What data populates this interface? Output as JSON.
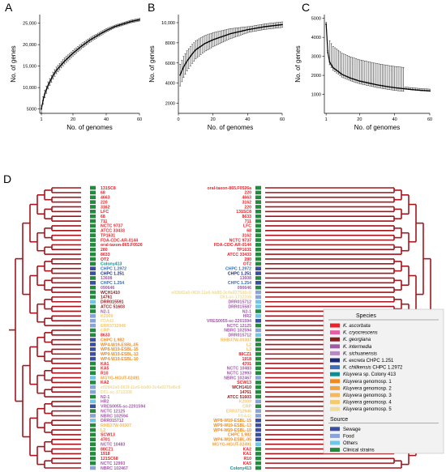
{
  "panels": {
    "a": "A",
    "b": "B",
    "c": "C",
    "d": "D"
  },
  "colors": {
    "tree": "#a5151b",
    "species": {
      "asc": "#e8232a",
      "cry": "#e45fa2",
      "geo": "#8f1d1e",
      "int": "#a05aa7",
      "sic": "#b88ac1",
      "exc": "#1d2a7a",
      "chi": "#3b6fb6",
      "col": "#0e8c8f",
      "g1": "#f08a1f",
      "g2": "#f4a23a",
      "g3": "#f6b85c",
      "g4": "#f6c96f",
      "g5": "#efdc98"
    },
    "source": {
      "sewage": "#3a4ea3",
      "food": "#8aa3d8",
      "others": "#6cc7ea",
      "clinical": "#1f8d3c"
    }
  },
  "chart_data": [
    {
      "id": "A",
      "type": "scatter",
      "xlabel": "No. of genomes",
      "ylabel": "No. of genes",
      "xlim": [
        0,
        60
      ],
      "ylim": [
        4000,
        27000
      ],
      "xticks": [
        "1",
        "20",
        "40",
        "60"
      ],
      "xtick_values": [
        1,
        20,
        40,
        60
      ],
      "yticks": [
        "5000",
        "10,000",
        "15,000",
        "20,000",
        "25,000"
      ],
      "ytick_values": [
        5000,
        10000,
        15000,
        20000,
        25000
      ],
      "curve": [
        [
          1,
          5000
        ],
        [
          2,
          7000
        ],
        [
          3,
          8500
        ],
        [
          5,
          10500
        ],
        [
          8,
          12800
        ],
        [
          10,
          14000
        ],
        [
          15,
          16200
        ],
        [
          20,
          18000
        ],
        [
          25,
          19600
        ],
        [
          30,
          21000
        ],
        [
          35,
          22200
        ],
        [
          40,
          23300
        ],
        [
          45,
          24200
        ],
        [
          50,
          24800
        ],
        [
          55,
          25400
        ],
        [
          60,
          25800
        ]
      ]
    },
    {
      "id": "B",
      "type": "scatter",
      "xlabel": "No. of genomes",
      "ylabel": "No. of genes",
      "xlim": [
        0,
        60
      ],
      "ylim": [
        1000,
        10800
      ],
      "xticks": [
        "0",
        "20",
        "40",
        "60"
      ],
      "xtick_values": [
        0,
        20,
        40,
        60
      ],
      "yticks": [
        "2000",
        "4000",
        "6000",
        "8000",
        "10,000"
      ],
      "ytick_values": [
        2000,
        4000,
        6000,
        8000,
        10000
      ],
      "curve": [
        [
          1,
          4800
        ],
        [
          3,
          5600
        ],
        [
          5,
          6200
        ],
        [
          8,
          6900
        ],
        [
          10,
          7300
        ],
        [
          15,
          7900
        ],
        [
          20,
          8300
        ],
        [
          25,
          8600
        ],
        [
          30,
          8900
        ],
        [
          35,
          9100
        ],
        [
          40,
          9300
        ],
        [
          45,
          9450
        ],
        [
          50,
          9600
        ],
        [
          55,
          9700
        ],
        [
          60,
          9800
        ]
      ]
    },
    {
      "id": "C",
      "type": "scatter",
      "xlabel": "No. of genomes",
      "ylabel": "No. of genes",
      "xlim": [
        0,
        60
      ],
      "ylim": [
        0,
        5200
      ],
      "xticks": [
        "1",
        "20",
        "40",
        "60"
      ],
      "xtick_values": [
        1,
        20,
        40,
        60
      ],
      "yticks": [
        "1000",
        "2000",
        "3000",
        "4000",
        "5000"
      ],
      "ytick_values": [
        1000,
        2000,
        3000,
        4000,
        5000
      ],
      "curve": [
        [
          1,
          4700
        ],
        [
          2,
          3200
        ],
        [
          3,
          2700
        ],
        [
          5,
          2400
        ],
        [
          8,
          2200
        ],
        [
          10,
          2050
        ],
        [
          15,
          1850
        ],
        [
          20,
          1700
        ],
        [
          25,
          1600
        ],
        [
          30,
          1500
        ],
        [
          35,
          1420
        ],
        [
          40,
          1350
        ],
        [
          45,
          1300
        ],
        [
          50,
          1250
        ],
        [
          55,
          1210
        ],
        [
          60,
          1180
        ]
      ]
    }
  ],
  "tree_left_leaves": [
    {
      "label": "131SC8",
      "sp": "asc",
      "src": "clinical"
    },
    {
      "label": "68",
      "sp": "asc",
      "src": "clinical"
    },
    {
      "label": "4663",
      "sp": "asc",
      "src": "clinical"
    },
    {
      "label": "220",
      "sp": "asc",
      "src": "clinical"
    },
    {
      "label": "3162",
      "sp": "asc",
      "src": "clinical"
    },
    {
      "label": "LFC",
      "sp": "asc",
      "src": "clinical"
    },
    {
      "label": "68",
      "sp": "asc",
      "src": "clinical"
    },
    {
      "label": "711",
      "sp": "asc",
      "src": "clinical"
    },
    {
      "label": "NCTC 9737",
      "sp": "asc",
      "src": "clinical"
    },
    {
      "label": "ATCC 33433",
      "sp": "asc",
      "src": "clinical"
    },
    {
      "label": "TP1631",
      "sp": "asc",
      "src": "clinical"
    },
    {
      "label": "FDA-CDC-AR-0144",
      "sp": "asc",
      "src": "clinical"
    },
    {
      "label": "oral-taxon-865.F0526",
      "sp": "asc",
      "src": "clinical"
    },
    {
      "label": "280",
      "sp": "asc",
      "src": "clinical"
    },
    {
      "label": "8633",
      "sp": "asc",
      "src": "clinical"
    },
    {
      "label": "OT2",
      "sp": "asc",
      "src": "clinical"
    },
    {
      "label": "Colony413",
      "sp": "col",
      "src": "clinical"
    },
    {
      "label": "CHPC 1.2972",
      "sp": "chi",
      "src": "sewage"
    },
    {
      "label": "CHPC 1.251",
      "sp": "exc",
      "src": "sewage"
    },
    {
      "label": "13608",
      "sp": "int",
      "src": "clinical"
    },
    {
      "label": "CHPC 1.254",
      "sp": "chi",
      "src": "sewage"
    },
    {
      "label": "090646",
      "sp": "int",
      "src": "clinical"
    },
    {
      "label": "WCH1410",
      "sp": "geo",
      "src": "clinical"
    },
    {
      "label": "14761",
      "sp": "geo",
      "src": "clinical"
    },
    {
      "label": "DRR015591",
      "sp": "geo",
      "src": "others"
    },
    {
      "label": "ATCC 51603",
      "sp": "geo",
      "src": "clinical"
    },
    {
      "label": "N2-1",
      "sp": "int",
      "src": "clinical"
    },
    {
      "label": "K2009",
      "sp": "g4",
      "src": "food"
    },
    {
      "label": "FDA42",
      "sp": "g5",
      "src": "food"
    },
    {
      "label": "ERR3712946",
      "sp": "g4",
      "src": "food"
    },
    {
      "label": "CRP",
      "sp": "g4",
      "src": "clinical"
    },
    {
      "label": "8633",
      "sp": "asc",
      "src": "clinical"
    },
    {
      "label": "CHPC 1.982",
      "sp": "g1",
      "src": "sewage"
    },
    {
      "label": "WP4-W19-ESBL-05",
      "sp": "g1",
      "src": "sewage"
    },
    {
      "label": "WP8-W19-ESBL-15",
      "sp": "g1",
      "src": "sewage"
    },
    {
      "label": "WP9-W19-ESBL-13",
      "sp": "g1",
      "src": "sewage"
    },
    {
      "label": "WP4-W19-ESBL-10",
      "sp": "g1",
      "src": "sewage"
    },
    {
      "label": "KA1",
      "sp": "asc",
      "src": "clinical"
    },
    {
      "label": "KA5",
      "sp": "asc",
      "src": "clinical"
    },
    {
      "label": "R10",
      "sp": "asc",
      "src": "clinical"
    },
    {
      "label": "MGYG-HGUT-02491",
      "sp": "g2",
      "src": "others"
    },
    {
      "label": "KA2",
      "sp": "asc",
      "src": "clinical"
    },
    {
      "label": "e02842a0-063f-11e6-bb80-3c4a9275d6c8",
      "sp": "g5",
      "src": "food"
    },
    {
      "label": "D51-sc-1712208",
      "sp": "g5",
      "src": "food"
    },
    {
      "label": "N2-1",
      "sp": "int",
      "src": "clinical"
    },
    {
      "label": "HR2",
      "sp": "int",
      "src": "others"
    },
    {
      "label": "VRES0055-sc-2201594",
      "sp": "int",
      "src": "sewage"
    },
    {
      "label": "NCTC 12125",
      "sp": "int",
      "src": "clinical"
    },
    {
      "label": "NBRC 102594",
      "sp": "int",
      "src": "food"
    },
    {
      "label": "DRR015712",
      "sp": "int",
      "src": "others"
    },
    {
      "label": "RHB37W-00307",
      "sp": "g3",
      "src": "clinical"
    },
    {
      "label": "L2",
      "sp": "g3",
      "src": "clinical"
    },
    {
      "label": "SCW13",
      "sp": "asc",
      "src": "clinical"
    },
    {
      "label": "4701",
      "sp": "asc",
      "src": "clinical"
    },
    {
      "label": "NCTC 10483",
      "sp": "int",
      "src": "clinical"
    },
    {
      "label": "88CZ1",
      "sp": "asc",
      "src": "clinical"
    },
    {
      "label": "1918",
      "sp": "asc",
      "src": "clinical"
    },
    {
      "label": "121SC68",
      "sp": "asc",
      "src": "clinical"
    },
    {
      "label": "NCTC 12993",
      "sp": "int",
      "src": "clinical"
    },
    {
      "label": "NBRC 102467",
      "sp": "int",
      "src": "food"
    }
  ],
  "tree_right_leaves": [
    {
      "label": "oral-taxon-865.F0526a",
      "sp": "asc",
      "src": "clinical"
    },
    {
      "label": "220",
      "sp": "asc",
      "src": "clinical"
    },
    {
      "label": "4663",
      "sp": "asc",
      "src": "clinical"
    },
    {
      "label": "3162",
      "sp": "asc",
      "src": "clinical"
    },
    {
      "label": "220",
      "sp": "asc",
      "src": "clinical"
    },
    {
      "label": "131SC8",
      "sp": "asc",
      "src": "clinical"
    },
    {
      "label": "8633",
      "sp": "asc",
      "src": "clinical"
    },
    {
      "label": "711",
      "sp": "asc",
      "src": "clinical"
    },
    {
      "label": "LFC",
      "sp": "asc",
      "src": "clinical"
    },
    {
      "label": "68",
      "sp": "asc",
      "src": "clinical"
    },
    {
      "label": "3162",
      "sp": "asc",
      "src": "clinical"
    },
    {
      "label": "NCTC 9737",
      "sp": "asc",
      "src": "clinical"
    },
    {
      "label": "FDA-CDC-AR-0144",
      "sp": "asc",
      "src": "clinical"
    },
    {
      "label": "TP1631",
      "sp": "asc",
      "src": "clinical"
    },
    {
      "label": "ATCC 33433",
      "sp": "asc",
      "src": "clinical"
    },
    {
      "label": "280",
      "sp": "asc",
      "src": "clinical"
    },
    {
      "label": "OT2",
      "sp": "asc",
      "src": "clinical"
    },
    {
      "label": "CHPC 1.2972",
      "sp": "chi",
      "src": "sewage"
    },
    {
      "label": "CHPC 1.251",
      "sp": "exc",
      "src": "sewage"
    },
    {
      "label": "13608",
      "sp": "int",
      "src": "clinical"
    },
    {
      "label": "CHPC 1.254",
      "sp": "chi",
      "src": "sewage"
    },
    {
      "label": "090646",
      "sp": "int",
      "src": "clinical"
    },
    {
      "label": "e02842a0-063f-11e6-bb80-3c4a9275d6c8",
      "sp": "g5",
      "src": "food"
    },
    {
      "label": "D51-sc-1712208",
      "sp": "g5",
      "src": "food"
    },
    {
      "label": "DRR015712",
      "sp": "int",
      "src": "others"
    },
    {
      "label": "DRR015587",
      "sp": "int",
      "src": "others"
    },
    {
      "label": "N2-1",
      "sp": "int",
      "src": "clinical"
    },
    {
      "label": "HR2",
      "sp": "int",
      "src": "others"
    },
    {
      "label": "VRES0055-sc-2201594",
      "sp": "int",
      "src": "sewage"
    },
    {
      "label": "NCTC 12125",
      "sp": "int",
      "src": "clinical"
    },
    {
      "label": "NBRC 102594",
      "sp": "int",
      "src": "food"
    },
    {
      "label": "DRR015712",
      "sp": "int",
      "src": "others"
    },
    {
      "label": "RHB37W-00307",
      "sp": "g3",
      "src": "clinical"
    },
    {
      "label": "L2",
      "sp": "g3",
      "src": "clinical"
    },
    {
      "label": "L3",
      "sp": "g3",
      "src": "clinical"
    },
    {
      "label": "88CZ1",
      "sp": "asc",
      "src": "clinical"
    },
    {
      "label": "1918",
      "sp": "asc",
      "src": "clinical"
    },
    {
      "label": "4701",
      "sp": "asc",
      "src": "clinical"
    },
    {
      "label": "NCTC 10483",
      "sp": "int",
      "src": "clinical"
    },
    {
      "label": "NCTC 12993",
      "sp": "int",
      "src": "clinical"
    },
    {
      "label": "NBRC 102467",
      "sp": "int",
      "src": "food"
    },
    {
      "label": "SCW13",
      "sp": "asc",
      "src": "clinical"
    },
    {
      "label": "WCH1410",
      "sp": "geo",
      "src": "clinical"
    },
    {
      "label": "14761",
      "sp": "geo",
      "src": "clinical"
    },
    {
      "label": "ATCC 51603",
      "sp": "geo",
      "src": "clinical"
    },
    {
      "label": "K2009",
      "sp": "g4",
      "src": "food"
    },
    {
      "label": "CRP",
      "sp": "g4",
      "src": "clinical"
    },
    {
      "label": "ERR3712946",
      "sp": "g4",
      "src": "food"
    },
    {
      "label": "FDA42",
      "sp": "g5",
      "src": "food"
    },
    {
      "label": "WP8-W19-ESBL-15",
      "sp": "g1",
      "src": "sewage"
    },
    {
      "label": "WP9-W19-ESBL-13",
      "sp": "g1",
      "src": "sewage"
    },
    {
      "label": "WP4-W19-ESBL-10",
      "sp": "g1",
      "src": "sewage"
    },
    {
      "label": "CHPC 1.982",
      "sp": "g1",
      "src": "sewage"
    },
    {
      "label": "WP4-W19-ESBL-05",
      "sp": "g1",
      "src": "sewage"
    },
    {
      "label": "MGYG-HGUT-02491",
      "sp": "g2",
      "src": "others"
    },
    {
      "label": "KA2",
      "sp": "asc",
      "src": "clinical"
    },
    {
      "label": "KA1",
      "sp": "asc",
      "src": "clinical"
    },
    {
      "label": "R10",
      "sp": "asc",
      "src": "clinical"
    },
    {
      "label": "KA5",
      "sp": "asc",
      "src": "clinical"
    },
    {
      "label": "Colony413",
      "sp": "col",
      "src": "clinical"
    }
  ],
  "legend": {
    "species_title": "Species",
    "species": [
      {
        "key": "asc",
        "genus": "K.",
        "name": "ascorbata"
      },
      {
        "key": "cry",
        "genus": "K.",
        "name": "cryocrescens"
      },
      {
        "key": "geo",
        "genus": "K.",
        "name": "georgiana"
      },
      {
        "key": "int",
        "genus": "K.",
        "name": "intermedia"
      },
      {
        "key": "sic",
        "genus": "K.",
        "name": "sichuanensis"
      },
      {
        "key": "exc",
        "genus": "K.",
        "name": "excreta",
        "suffix": " CHPC 1.251"
      },
      {
        "key": "chi",
        "genus": "K.",
        "name": "chilikensis",
        "suffix": " CHPC 1.2972"
      },
      {
        "key": "col",
        "genus": "Kluyvera",
        "name": "",
        "suffix": " sp. Colony 413"
      },
      {
        "key": "g1",
        "genus": "Kluyvera",
        "name": "",
        "suffix": " genomosp. 1"
      },
      {
        "key": "g2",
        "genus": "Kluyvera",
        "name": "",
        "suffix": " genomosp. 2"
      },
      {
        "key": "g3",
        "genus": "Kluyvera",
        "name": "",
        "suffix": " genomosp. 3"
      },
      {
        "key": "g4",
        "genus": "Kluyvera",
        "name": "",
        "suffix": " genomosp. 4"
      },
      {
        "key": "g5",
        "genus": "Kluyvera",
        "name": "",
        "suffix": " genomosp. 5"
      }
    ],
    "source_title": "Source",
    "sources": [
      {
        "key": "sewage",
        "label": "Sewage"
      },
      {
        "key": "food",
        "label": "Food"
      },
      {
        "key": "others",
        "label": "Others"
      },
      {
        "key": "clinical",
        "label": "Clinical strains"
      }
    ]
  }
}
